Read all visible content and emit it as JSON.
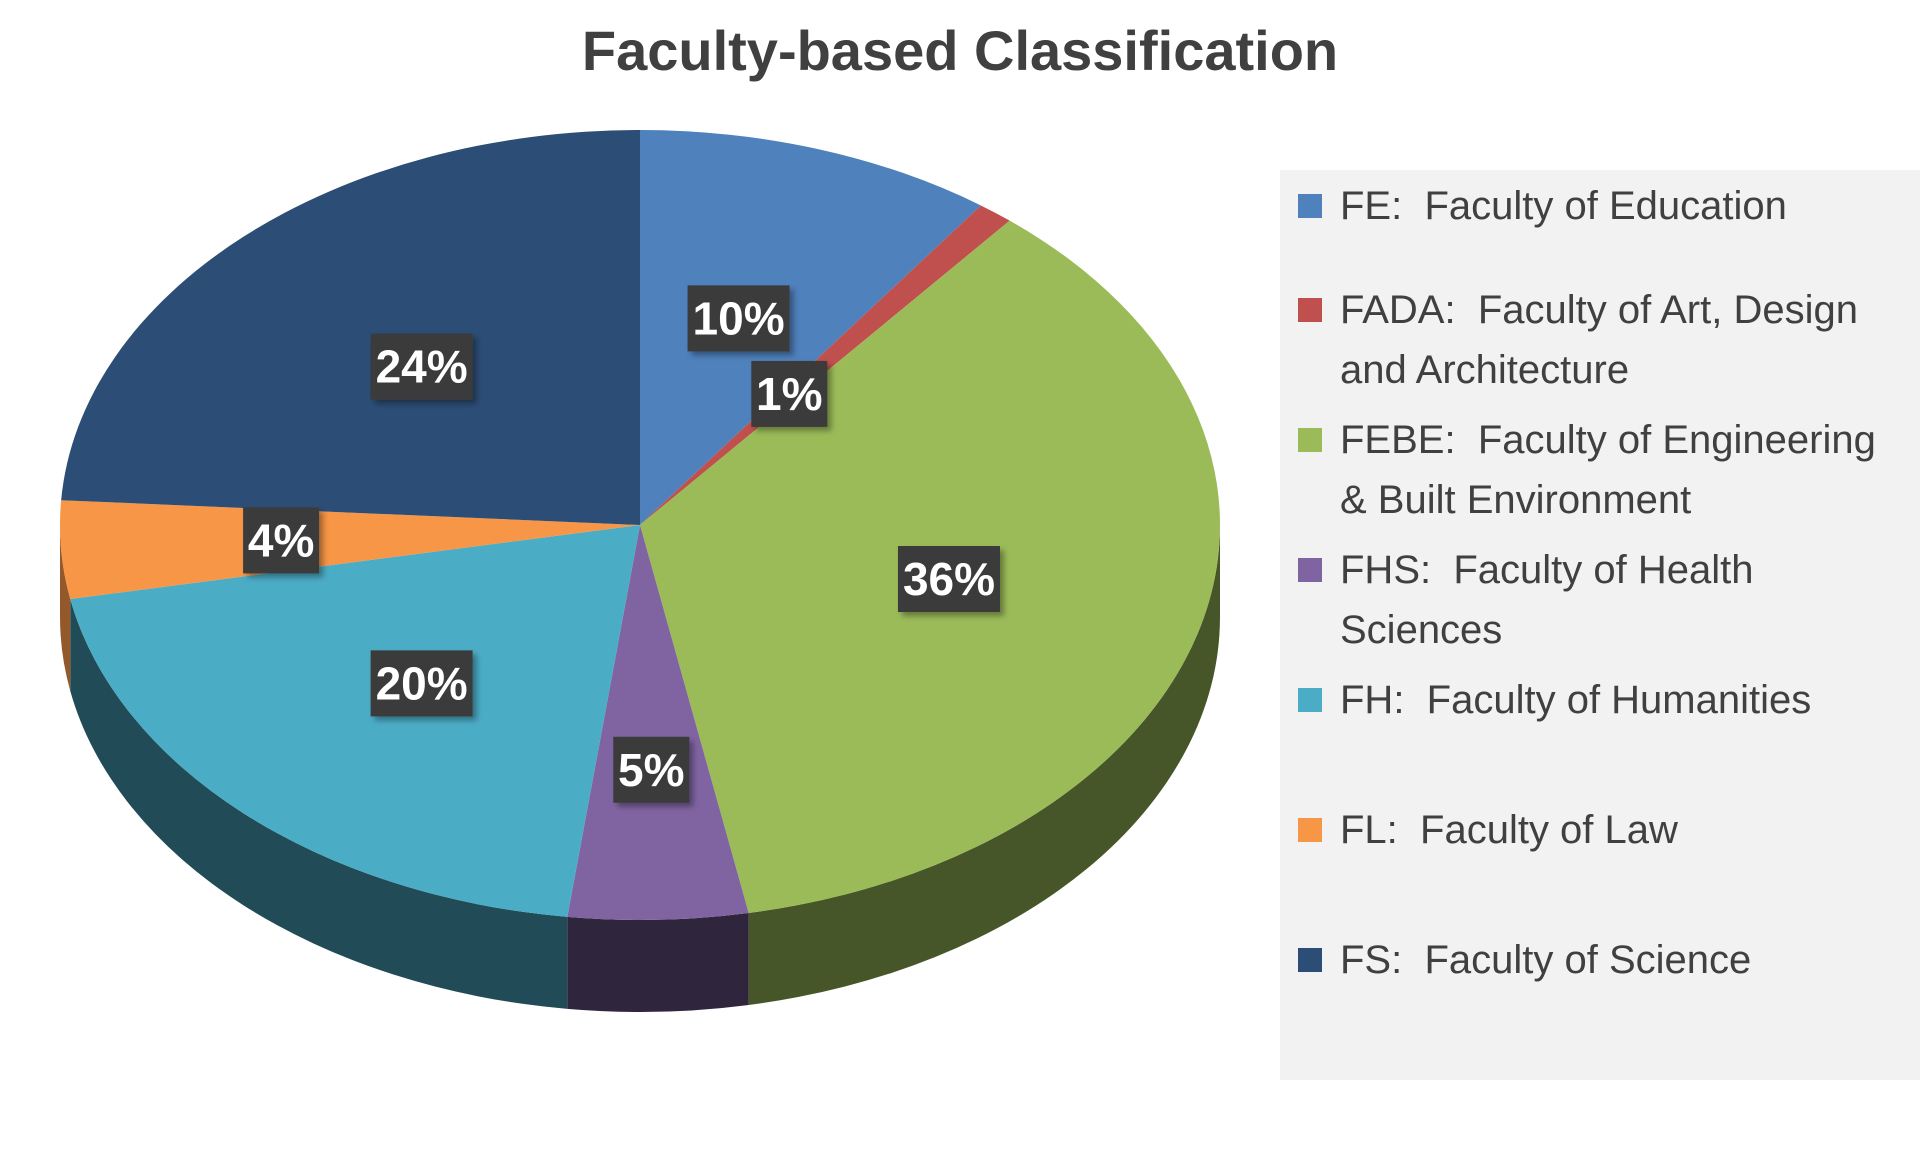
{
  "chart_data": {
    "type": "pie",
    "title": "Faculty-based Classification",
    "categories": [
      "FE",
      "FADA",
      "FEBE",
      "FHS",
      "FH",
      "FL",
      "FS"
    ],
    "values": [
      10,
      1,
      36,
      5,
      20,
      4,
      24
    ],
    "data_labels": [
      "10%",
      "1%",
      "36%",
      "5%",
      "20%",
      "4%",
      "24%"
    ],
    "colors": [
      "#4F81BD",
      "#C0504D",
      "#9BBB59",
      "#8064A2",
      "#4BACC6",
      "#F79646",
      "#2C4D75"
    ],
    "legend_entries": [
      "FE:  Faculty of Education",
      "FADA:  Faculty of Art, Design and Architecture",
      "FEBE:  Faculty of Engineering & Built Environment",
      "FHS:  Faculty of Health Sciences",
      "FH:  Faculty of Humanities",
      "FL:  Faculty of Law",
      "FS:  Faculty of Science"
    ],
    "legend_lines": [
      [
        "FE:  Faculty of Education"
      ],
      [
        "FADA:  Faculty of Art, Design",
        "and Architecture"
      ],
      [
        "FEBE:  Faculty of Engineering",
        "& Built Environment"
      ],
      [
        "FHS:  Faculty of Health",
        "Sciences"
      ],
      [
        "FH:  Faculty of Humanities"
      ],
      [
        "FL:  Faculty of Law"
      ],
      [
        "FS:  Faculty of Science"
      ]
    ],
    "legend_position": "right",
    "style": "3d-pie"
  }
}
